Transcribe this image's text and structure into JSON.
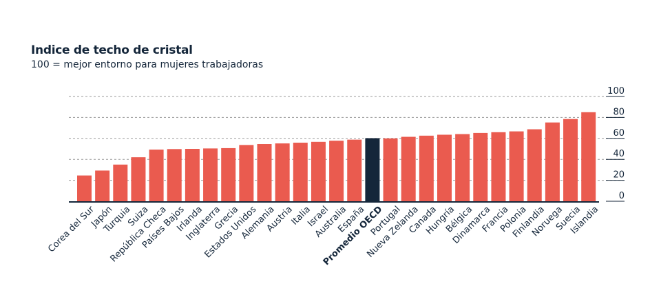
{
  "chart_data": {
    "type": "bar",
    "title": "Indice de techo de cristal",
    "subtitle": "100 = mejor entorno para mujeres trabajadoras",
    "categories": [
      "Corea del Sur",
      "Japón",
      "Turquia",
      "Suiza",
      "República Checa",
      "Países Bajos",
      "Irlanda",
      "Inglaterra",
      "Grecia",
      "Estados Unidos",
      "Alemania",
      "Austria",
      "Italia",
      "Israel",
      "Australia",
      "España",
      "Promedio OECD",
      "Portugal",
      "Nueva Zelanda",
      "Canada",
      "Hungría",
      "Bélgica",
      "Dinamarca",
      "Francia",
      "Polonia",
      "Finlandia",
      "Noruega",
      "Suecia",
      "Islandia"
    ],
    "values": [
      24.6,
      29.3,
      35,
      42,
      49.3,
      49.8,
      50,
      50.4,
      50.7,
      53.7,
      54.6,
      55.2,
      55.9,
      56.7,
      57.8,
      58.8,
      60.2,
      60,
      61.5,
      62.6,
      63.5,
      64.1,
      65.2,
      65.9,
      66.7,
      68.7,
      75.2,
      78.5,
      85
    ],
    "highlight": "Promedio OECD",
    "ylim": [
      0,
      100
    ],
    "yticks": [
      "0",
      "20",
      "40",
      "60",
      "80",
      "100"
    ],
    "grid": true,
    "colors": {
      "bar": "#ea5b4f",
      "highlight": "#14263a",
      "text": "#14263a",
      "grid": "#9a9a9a"
    }
  }
}
